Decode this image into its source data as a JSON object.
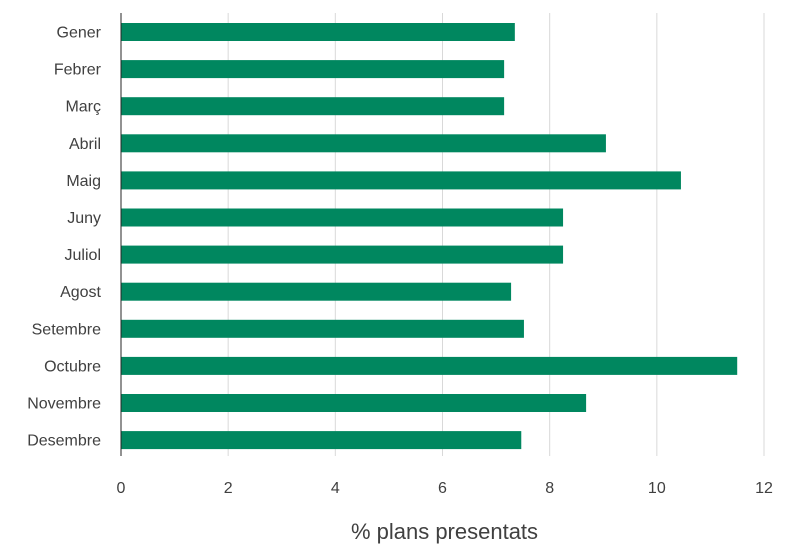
{
  "chart_data": {
    "type": "bar",
    "orientation": "horizontal",
    "categories": [
      "Gener",
      "Febrer",
      "Març",
      "Abril",
      "Maig",
      "Juny",
      "Juliol",
      "Agost",
      "Setembre",
      "Octubre",
      "Novembre",
      "Desembre"
    ],
    "values": [
      7.35,
      7.15,
      7.15,
      9.05,
      10.45,
      8.25,
      8.25,
      7.28,
      7.52,
      11.5,
      8.68,
      7.47
    ],
    "xlabel": "% plans presentats",
    "ylabel": "",
    "title": "",
    "xlim": [
      0,
      12
    ],
    "xticks": [
      0,
      2,
      4,
      6,
      8,
      10,
      12
    ],
    "bar_color": "#00875F",
    "grid": "vertical"
  }
}
